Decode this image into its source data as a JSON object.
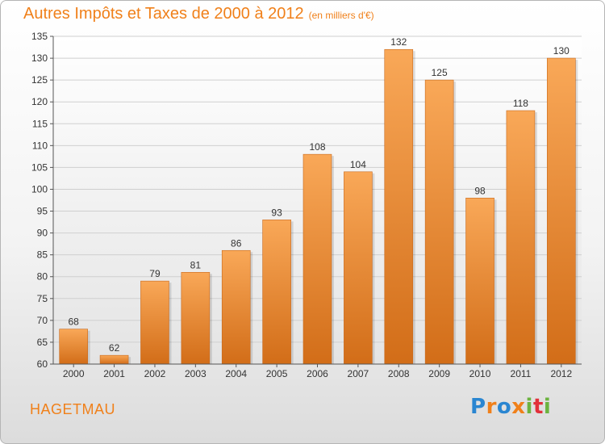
{
  "header": {
    "title": "Autres Impôts et Taxes de 2000 à 2012",
    "unit": "(en milliers d'€)"
  },
  "footer": {
    "commune": "HAGETMAU",
    "logo_text": "Proxiti",
    "logo_colors": [
      "#2a86d1",
      "#f0801a",
      "#6cb33f",
      "#e2303a"
    ]
  },
  "colors": {
    "bar_light": "#f9a858",
    "bar_dark": "#d26d18",
    "title": "#f0801a",
    "grid": "#cfcfcf"
  },
  "chart_data": {
    "type": "bar",
    "title": "Autres Impôts et Taxes de 2000 à 2012",
    "subtitle": "(en milliers d'€)",
    "xlabel": "",
    "ylabel": "",
    "categories": [
      "2000",
      "2001",
      "2002",
      "2003",
      "2004",
      "2005",
      "2006",
      "2007",
      "2008",
      "2009",
      "2010",
      "2011",
      "2012"
    ],
    "values": [
      68,
      62,
      79,
      81,
      86,
      93,
      108,
      104,
      132,
      125,
      98,
      118,
      130
    ],
    "ylim": [
      60,
      135
    ],
    "yticks": [
      60,
      65,
      70,
      75,
      80,
      85,
      90,
      95,
      100,
      105,
      110,
      115,
      120,
      125,
      130,
      135
    ],
    "grid": true,
    "data_labels": true
  }
}
